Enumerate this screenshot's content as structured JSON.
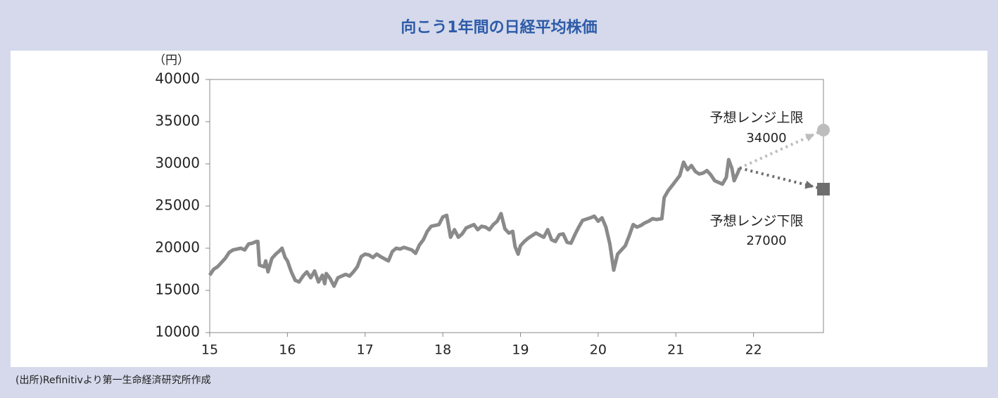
{
  "chart_data": {
    "type": "line",
    "title": "向こう1年間の日経平均株価",
    "y_label": "（円）",
    "source": "(出所)Refinitivより第一生命経済研究所作成",
    "xlim": [
      15,
      22.9
    ],
    "xticks": [
      15,
      16,
      17,
      18,
      19,
      20,
      21,
      22
    ],
    "ylim": [
      10000,
      40000
    ],
    "yticks": [
      10000,
      15000,
      20000,
      25000,
      30000,
      35000,
      40000
    ],
    "series": [
      {
        "color": "#8a8a8a",
        "style": "solid",
        "x": [
          15.0,
          15.05,
          15.1,
          15.2,
          15.25,
          15.3,
          15.4,
          15.45,
          15.5,
          15.55,
          15.6,
          15.62,
          15.64,
          15.7,
          15.72,
          15.75,
          15.8,
          15.85,
          15.9,
          15.93,
          15.97,
          16.0,
          16.05,
          16.1,
          16.15,
          16.2,
          16.25,
          16.3,
          16.35,
          16.4,
          16.45,
          16.48,
          16.5,
          16.55,
          16.6,
          16.65,
          16.7,
          16.75,
          16.8,
          16.85,
          16.9,
          16.95,
          17.0,
          17.05,
          17.1,
          17.15,
          17.2,
          17.3,
          17.35,
          17.4,
          17.45,
          17.5,
          17.6,
          17.65,
          17.7,
          17.75,
          17.8,
          17.85,
          17.9,
          17.95,
          18.0,
          18.05,
          18.1,
          18.15,
          18.2,
          18.25,
          18.3,
          18.35,
          18.4,
          18.45,
          18.5,
          18.55,
          18.6,
          18.65,
          18.7,
          18.75,
          18.8,
          18.85,
          18.9,
          18.93,
          18.97,
          19.0,
          19.05,
          19.1,
          19.15,
          19.2,
          19.3,
          19.35,
          19.4,
          19.45,
          19.5,
          19.55,
          19.6,
          19.65,
          19.7,
          19.75,
          19.8,
          19.9,
          19.95,
          20.0,
          20.05,
          20.1,
          20.15,
          20.2,
          20.25,
          20.3,
          20.35,
          20.4,
          20.45,
          20.5,
          20.55,
          20.6,
          20.65,
          20.7,
          20.75,
          20.82,
          20.85,
          20.9,
          20.95,
          21.0,
          21.05,
          21.1,
          21.15,
          21.2,
          21.25,
          21.3,
          21.35,
          21.4,
          21.45,
          21.5,
          21.55,
          21.6,
          21.65,
          21.68,
          21.72,
          21.75,
          21.8,
          21.82
        ],
        "values": [
          16800,
          17500,
          17800,
          18800,
          19500,
          19800,
          20000,
          19800,
          20500,
          20600,
          20800,
          20800,
          18000,
          17800,
          18500,
          17200,
          18800,
          19300,
          19700,
          20000,
          18900,
          18500,
          17200,
          16200,
          16000,
          16700,
          17200,
          16500,
          17300,
          16000,
          16800,
          15800,
          17000,
          16400,
          15500,
          16500,
          16700,
          16900,
          16700,
          17200,
          17800,
          19000,
          19300,
          19200,
          18900,
          19300,
          19000,
          18500,
          19600,
          20000,
          19900,
          20100,
          19800,
          19400,
          20400,
          21000,
          22000,
          22600,
          22700,
          22800,
          23700,
          23900,
          21300,
          22200,
          21300,
          21700,
          22400,
          22600,
          22800,
          22200,
          22600,
          22500,
          22200,
          22800,
          23200,
          24100,
          22300,
          21800,
          22000,
          20200,
          19300,
          20300,
          20800,
          21200,
          21500,
          21800,
          21300,
          22200,
          21000,
          20800,
          21600,
          21700,
          20700,
          20600,
          21600,
          22500,
          23300,
          23600,
          23800,
          23200,
          23600,
          22500,
          20500,
          17400,
          19300,
          19800,
          20300,
          21500,
          22800,
          22500,
          22700,
          23000,
          23200,
          23500,
          23400,
          23500,
          26000,
          26800,
          27400,
          28000,
          28600,
          30200,
          29300,
          29800,
          29100,
          28800,
          28900,
          29200,
          28700,
          28000,
          27800,
          27600,
          28400,
          30500,
          29500,
          28000,
          29000,
          29500
        ]
      },
      {
        "name": "予想レンジ上限",
        "color": "#bdbdbd",
        "style": "dotted",
        "marker": "circle",
        "x": [
          21.82,
          22.9
        ],
        "values": [
          29500,
          34000
        ]
      },
      {
        "name": "予想レンジ下限",
        "color": "#6e6e6e",
        "style": "dotted",
        "marker": "square",
        "x": [
          21.82,
          22.9
        ],
        "values": [
          29500,
          27000
        ]
      }
    ]
  }
}
